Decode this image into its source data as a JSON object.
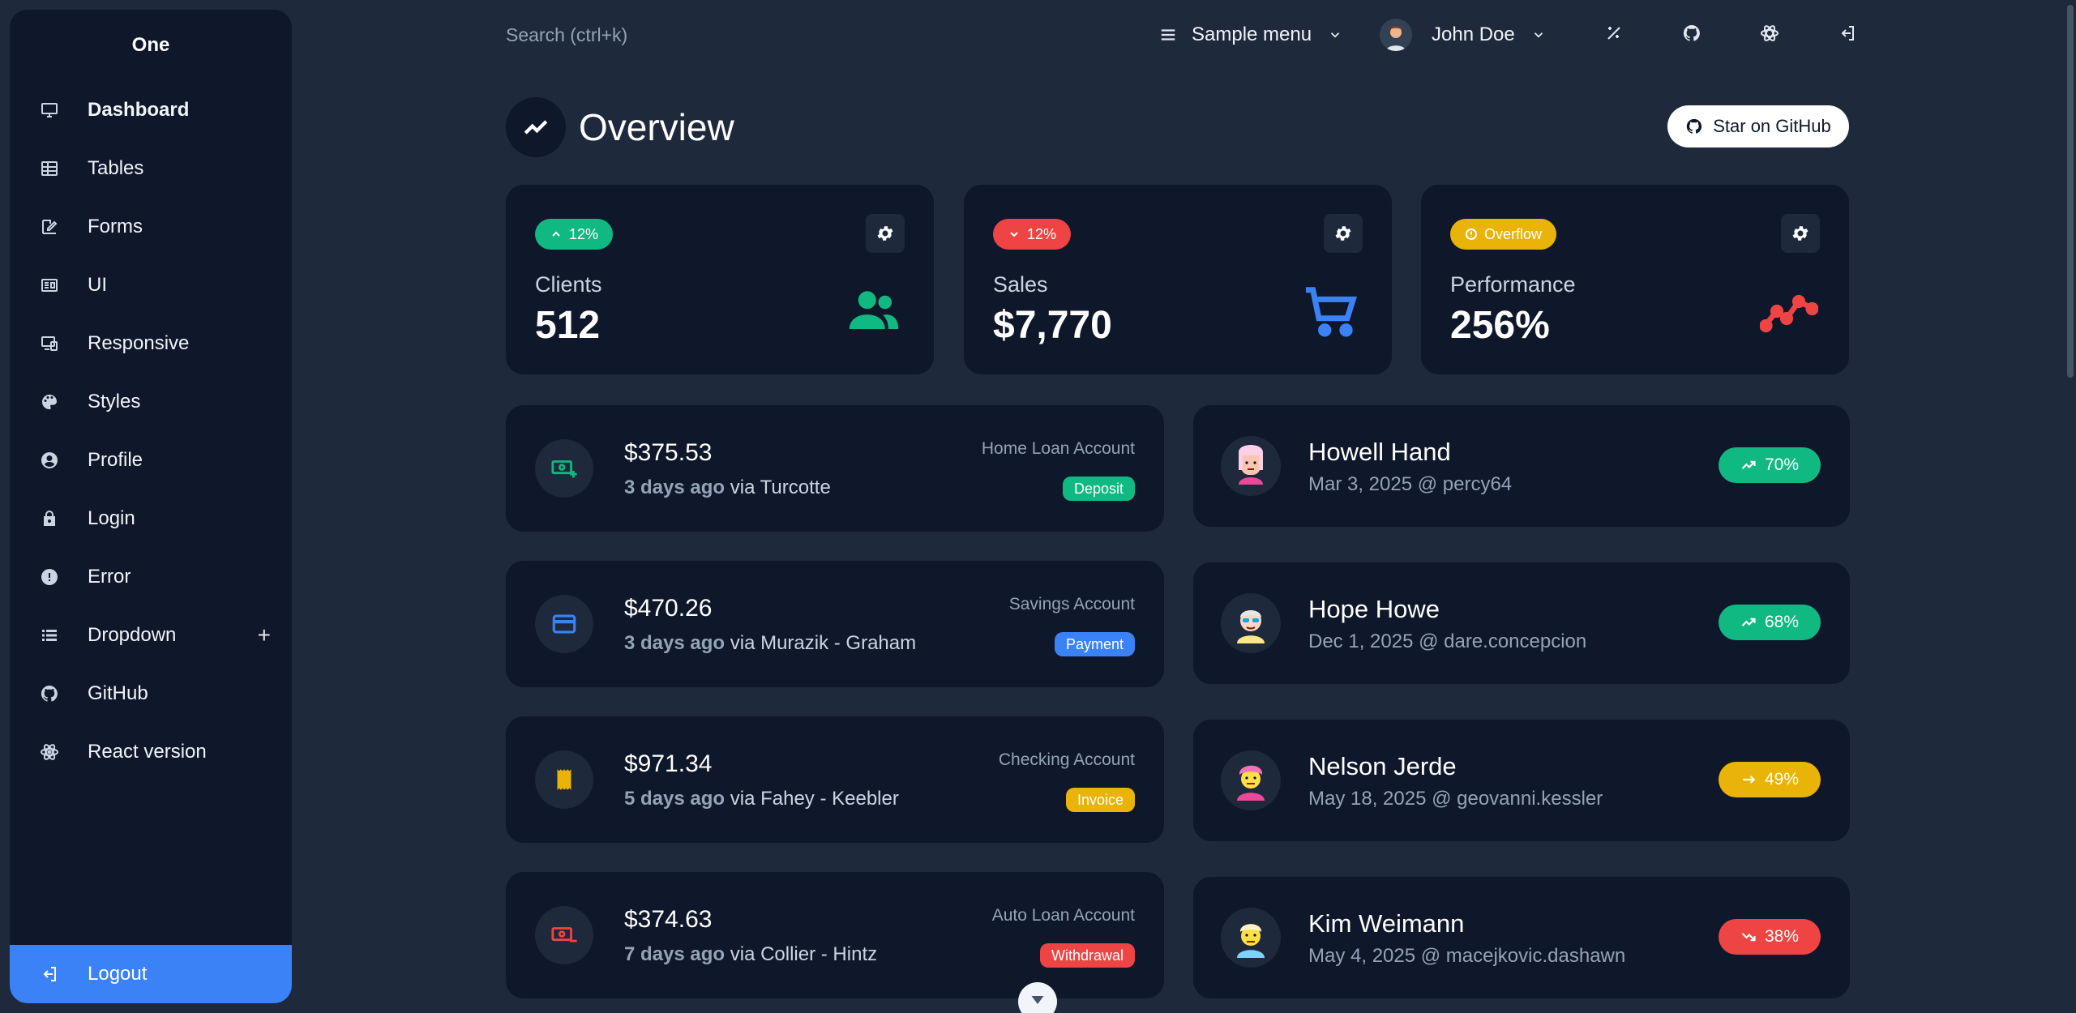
{
  "sidebar": {
    "brand": "One",
    "items": [
      {
        "label": "Dashboard",
        "icon": "monitor-icon"
      },
      {
        "label": "Tables",
        "icon": "table-icon"
      },
      {
        "label": "Forms",
        "icon": "edit-icon"
      },
      {
        "label": "UI",
        "icon": "ui-icon"
      },
      {
        "label": "Responsive",
        "icon": "responsive-icon"
      },
      {
        "label": "Styles",
        "icon": "palette-icon"
      },
      {
        "label": "Profile",
        "icon": "user-circle-icon"
      },
      {
        "label": "Login",
        "icon": "lock-icon"
      },
      {
        "label": "Error",
        "icon": "alert-icon"
      },
      {
        "label": "Dropdown",
        "icon": "list-icon",
        "expand": "+"
      },
      {
        "label": "GitHub",
        "icon": "github-icon"
      },
      {
        "label": "React version",
        "icon": "react-icon"
      }
    ],
    "logout": "Logout"
  },
  "topbar": {
    "search_placeholder": "Search (ctrl+k)",
    "sample_menu": "Sample menu",
    "user_name": "John Doe"
  },
  "page": {
    "title": "Overview",
    "star_label": "Star on GitHub"
  },
  "widgets": [
    {
      "pill": "12%",
      "pill_color": "#10b981",
      "label": "Clients",
      "value": "512",
      "icon": "users-icon"
    },
    {
      "pill": "12%",
      "pill_color": "#ef4444",
      "label": "Sales",
      "value": "$7,770",
      "icon": "cart-icon"
    },
    {
      "pill": "Overflow",
      "pill_color": "#eab308",
      "label": "Performance",
      "value": "256%",
      "icon": "trend-icon"
    }
  ],
  "transactions": [
    {
      "amount": "$375.53",
      "when": "3 days ago",
      "via": "via Turcotte",
      "account": "Home Loan Account",
      "badge": "Deposit",
      "badge_color": "#10b981",
      "icon": "cash-plus-icon"
    },
    {
      "amount": "$470.26",
      "when": "3 days ago",
      "via": "via Murazik - Graham",
      "account": "Savings Account",
      "badge": "Payment",
      "badge_color": "#3b82f6",
      "icon": "credit-card-icon"
    },
    {
      "amount": "$971.34",
      "when": "5 days ago",
      "via": "via Fahey - Keebler",
      "account": "Checking Account",
      "badge": "Invoice",
      "badge_color": "#eab308",
      "icon": "receipt-icon"
    },
    {
      "amount": "$374.63",
      "when": "7 days ago",
      "via": "via Collier - Hintz",
      "account": "Auto Loan Account",
      "badge": "Withdrawal",
      "badge_color": "#ef4444",
      "icon": "cash-minus-icon"
    }
  ],
  "clients": [
    {
      "name": "Howell Hand",
      "meta": "Mar 3, 2025 @ percy64",
      "progress": "70%",
      "color": "#10b981",
      "trend": "up"
    },
    {
      "name": "Hope Howe",
      "meta": "Dec 1, 2025 @ dare.concepcion",
      "progress": "68%",
      "color": "#10b981",
      "trend": "up"
    },
    {
      "name": "Nelson Jerde",
      "meta": "May 18, 2025 @ geovanni.kessler",
      "progress": "49%",
      "color": "#eab308",
      "trend": "flat"
    },
    {
      "name": "Kim Weimann",
      "meta": "May 4, 2025 @ macejkovic.dashawn",
      "progress": "38%",
      "color": "#ef4444",
      "trend": "down"
    }
  ]
}
